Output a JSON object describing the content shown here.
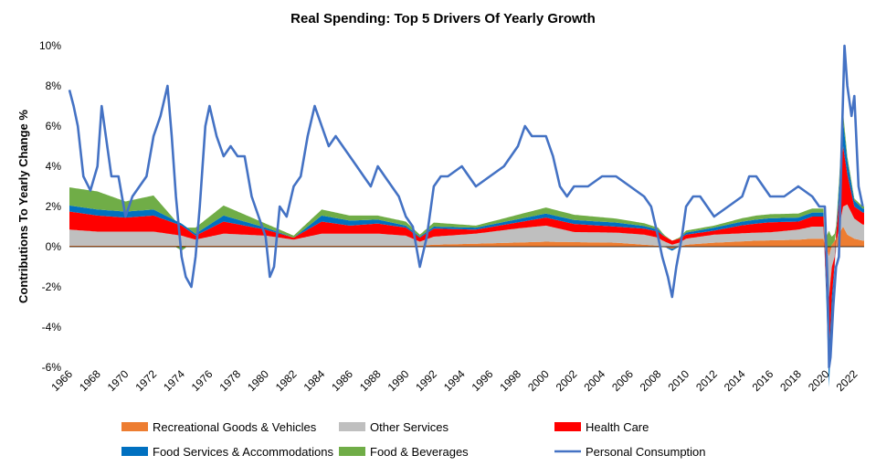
{
  "chart_data": {
    "type": "area",
    "title": "Real Spending: Top 5 Drivers Of Yearly Growth",
    "ylabel": "Contributions To Yearly Change %",
    "xlabel": "",
    "ylim": [
      -6,
      10
    ],
    "xlim": [
      1966,
      2022.7
    ],
    "grid": false,
    "legend_position": "bottom",
    "y_ticks": [
      "10%",
      "8%",
      "6%",
      "4%",
      "2%",
      "0%",
      "-2%",
      "-4%",
      "-6%"
    ],
    "x_ticks": [
      "1966",
      "1968",
      "1970",
      "1972",
      "1974",
      "1976",
      "1978",
      "1980",
      "1982",
      "1984",
      "1986",
      "1988",
      "1990",
      "1992",
      "1994",
      "1996",
      "1998",
      "2000",
      "2002",
      "2004",
      "2006",
      "2008",
      "2010",
      "2012",
      "2014",
      "2016",
      "2018",
      "2020",
      "2022"
    ],
    "stacked_series": [
      {
        "name": "Recreational Goods & Vehicles",
        "color": "#ED7D31",
        "x": [
          1966,
          1970,
          1975,
          1980,
          1985,
          1990,
          1991,
          1992,
          1995,
          2000,
          2005,
          2008,
          2009,
          2010,
          2012,
          2015,
          2018,
          2019,
          2019.8,
          2020.2,
          2020.4,
          2020.8,
          2021.2,
          2021.5,
          2022,
          2022.6
        ],
        "values": [
          0.05,
          0.05,
          0.05,
          0.05,
          0.05,
          0.05,
          0.05,
          0.1,
          0.15,
          0.25,
          0.2,
          0.05,
          -0.1,
          0.1,
          0.2,
          0.3,
          0.35,
          0.4,
          0.4,
          -0.5,
          0.1,
          0.5,
          1.0,
          0.6,
          0.4,
          0.3
        ]
      },
      {
        "name": "Other Services",
        "color": "#BFBFBF",
        "x": [
          1966,
          1968,
          1970,
          1972,
          1974,
          1975,
          1977,
          1980,
          1982,
          1984,
          1986,
          1988,
          1990,
          1991,
          1992,
          1995,
          1998,
          2000,
          2002,
          2005,
          2007,
          2008,
          2009,
          2010,
          2012,
          2014,
          2016,
          2018,
          2019,
          2019.8,
          2020.2,
          2020.4,
          2020.8,
          2021.2,
          2021.5,
          2022,
          2022.6
        ],
        "values": [
          0.8,
          0.7,
          0.7,
          0.7,
          0.5,
          0.3,
          0.6,
          0.5,
          0.3,
          0.6,
          0.6,
          0.6,
          0.5,
          0.2,
          0.4,
          0.5,
          0.7,
          0.8,
          0.5,
          0.5,
          0.5,
          0.4,
          0.1,
          0.3,
          0.4,
          0.4,
          0.4,
          0.5,
          0.6,
          0.6,
          -2.0,
          -1.0,
          0.0,
          1.0,
          1.5,
          1.0,
          0.8
        ]
      },
      {
        "name": "Health Care",
        "color": "#FF0000",
        "x": [
          1966,
          1968,
          1970,
          1972,
          1974,
          1975,
          1977,
          1980,
          1982,
          1984,
          1986,
          1988,
          1990,
          1991,
          1992,
          1995,
          1998,
          2000,
          2002,
          2005,
          2007,
          2008,
          2009,
          2010,
          2012,
          2014,
          2016,
          2018,
          2019,
          2019.8,
          2020.2,
          2020.4,
          2020.8,
          2021.2,
          2021.5,
          2022,
          2022.6
        ],
        "values": [
          0.9,
          0.8,
          0.7,
          0.8,
          0.5,
          0.2,
          0.6,
          0.3,
          0.1,
          0.6,
          0.4,
          0.5,
          0.4,
          0.2,
          0.4,
          0.2,
          0.3,
          0.4,
          0.4,
          0.3,
          0.3,
          0.3,
          0.2,
          0.2,
          0.2,
          0.4,
          0.5,
          0.4,
          0.5,
          0.5,
          -3.0,
          -1.5,
          0.8,
          3.0,
          1.5,
          0.6,
          0.6
        ]
      },
      {
        "name": "Food Services & Accommodations",
        "color": "#0070C0",
        "x": [
          1966,
          1970,
          1972,
          1974,
          1975,
          1977,
          1980,
          1982,
          1984,
          1988,
          1990,
          1991,
          1992,
          1995,
          2000,
          2005,
          2008,
          2009,
          2010,
          2012,
          2015,
          2018,
          2019.8,
          2020.2,
          2020.4,
          2020.8,
          2021.2,
          2021.5,
          2022,
          2022.6
        ],
        "values": [
          0.3,
          0.3,
          0.3,
          0.1,
          0.1,
          0.3,
          0.1,
          0.0,
          0.3,
          0.2,
          0.1,
          0.05,
          0.1,
          0.1,
          0.2,
          0.2,
          0.1,
          -0.1,
          0.1,
          0.15,
          0.2,
          0.2,
          0.2,
          -1.5,
          -0.8,
          0.4,
          1.3,
          0.7,
          0.3,
          0.2
        ]
      },
      {
        "name": "Food & Beverages",
        "color": "#70AD47",
        "x": [
          1966,
          1968,
          1970,
          1972,
          1974,
          1975,
          1977,
          1980,
          1982,
          1984,
          1988,
          1990,
          1991,
          1992,
          1995,
          2000,
          2005,
          2008,
          2009,
          2010,
          2012,
          2015,
          2018,
          2019.8,
          2020.2,
          2020.4,
          2020.8,
          2021.2,
          2021.5,
          2022,
          2022.6
        ],
        "values": [
          0.9,
          0.9,
          0.5,
          0.7,
          -0.2,
          0.3,
          0.5,
          0.2,
          0.1,
          0.3,
          0.2,
          0.2,
          0.1,
          0.2,
          0.1,
          0.3,
          0.2,
          0.1,
          0.0,
          0.1,
          0.1,
          0.2,
          0.2,
          0.2,
          0.8,
          0.4,
          0.3,
          0.4,
          0.2,
          0.1,
          0.1
        ]
      }
    ],
    "line_series": [
      {
        "name": "Personal Consumption",
        "color": "#4472C4",
        "x": [
          1966,
          1966.3,
          1966.6,
          1967,
          1967.5,
          1968,
          1968.3,
          1968.7,
          1969,
          1969.5,
          1970,
          1970.5,
          1971,
          1971.5,
          1972,
          1972.5,
          1973,
          1973.3,
          1973.6,
          1974,
          1974.3,
          1974.7,
          1975,
          1975.3,
          1975.7,
          1976,
          1976.5,
          1977,
          1977.5,
          1978,
          1978.5,
          1979,
          1979.5,
          1980,
          1980.3,
          1980.6,
          1981,
          1981.5,
          1982,
          1982.5,
          1983,
          1983.5,
          1984,
          1984.5,
          1985,
          1985.5,
          1986,
          1986.5,
          1987,
          1987.5,
          1988,
          1988.5,
          1989,
          1989.5,
          1990,
          1990.5,
          1991,
          1991.5,
          1992,
          1992.5,
          1993,
          1994,
          1995,
          1996,
          1997,
          1998,
          1998.5,
          1999,
          2000,
          2000.5,
          2001,
          2001.5,
          2002,
          2003,
          2004,
          2005,
          2006,
          2007,
          2007.5,
          2008,
          2008.3,
          2008.7,
          2009,
          2009.3,
          2009.7,
          2010,
          2010.5,
          2011,
          2012,
          2013,
          2014,
          2014.5,
          2015,
          2016,
          2017,
          2018,
          2019,
          2019.5,
          2019.9,
          2020.1,
          2020.2,
          2020.3,
          2020.5,
          2020.7,
          2020.9,
          2021.1,
          2021.3,
          2021.5,
          2021.8,
          2022,
          2022.3,
          2022.6
        ],
        "values": [
          7.8,
          7.0,
          6.0,
          3.5,
          2.8,
          4.0,
          7.0,
          5.0,
          3.5,
          3.5,
          1.5,
          2.5,
          3.0,
          3.5,
          5.5,
          6.5,
          8.0,
          5.5,
          2.5,
          -0.5,
          -1.5,
          -2.0,
          -0.5,
          2.0,
          6.0,
          7.0,
          5.5,
          4.5,
          5.0,
          4.5,
          4.5,
          2.5,
          1.5,
          0.5,
          -1.5,
          -1.0,
          2.0,
          1.5,
          3.0,
          3.5,
          5.5,
          7.0,
          6.0,
          5.0,
          5.5,
          5.0,
          4.5,
          4.0,
          3.5,
          3.0,
          4.0,
          3.5,
          3.0,
          2.5,
          1.5,
          1.0,
          -1.0,
          0.5,
          3.0,
          3.5,
          3.5,
          4.0,
          3.0,
          3.5,
          4.0,
          5.0,
          6.0,
          5.5,
          5.5,
          4.5,
          3.0,
          2.5,
          3.0,
          3.0,
          3.5,
          3.5,
          3.0,
          2.5,
          2.0,
          0.5,
          -0.5,
          -1.5,
          -2.5,
          -1.0,
          0.5,
          2.0,
          2.5,
          2.5,
          1.5,
          2.0,
          2.5,
          3.5,
          3.5,
          2.5,
          2.5,
          3.0,
          2.5,
          2.0,
          2.0,
          -2.0,
          -6.0,
          -5.5,
          -3.0,
          -1.0,
          -0.5,
          5.0,
          10.0,
          8.0,
          6.5,
          7.5,
          3.0,
          2.0
        ]
      }
    ]
  }
}
